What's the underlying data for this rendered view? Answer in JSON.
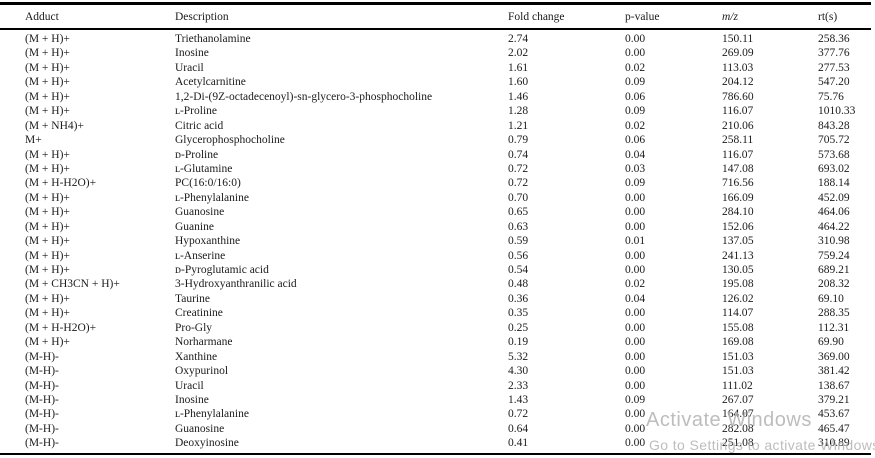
{
  "colors": {
    "background": "#ffffff",
    "text": "#1b1b1b",
    "rule": "#000000",
    "watermark": "#b2b2b2"
  },
  "table": {
    "columns": [
      "Adduct",
      "Description",
      "Fold change",
      "p-value",
      "m/z",
      "rt(s)"
    ],
    "rows": [
      {
        "adduct": "(M + H)+",
        "description": "Triethanolamine",
        "fold_change": "2.74",
        "p_value": "0.00",
        "mz": "150.11",
        "rt": "258.36"
      },
      {
        "adduct": "(M + H)+",
        "description": "Inosine",
        "fold_change": "2.02",
        "p_value": "0.00",
        "mz": "269.09",
        "rt": "377.76"
      },
      {
        "adduct": "(M + H)+",
        "description": "Uracil",
        "fold_change": "1.61",
        "p_value": "0.02",
        "mz": "113.03",
        "rt": "277.53"
      },
      {
        "adduct": "(M + H)+",
        "description": "Acetylcarnitine",
        "fold_change": "1.60",
        "p_value": "0.09",
        "mz": "204.12",
        "rt": "547.20"
      },
      {
        "adduct": "(M + H)+",
        "description": "1,2-Di-(9Z-octadecenoyl)-sn-glycero-3-phosphocholine",
        "fold_change": "1.46",
        "p_value": "0.06",
        "mz": "786.60",
        "rt": "75.76"
      },
      {
        "adduct": "(M + H)+",
        "description": "ʟ-Proline",
        "fold_change": "1.28",
        "p_value": "0.09",
        "mz": "116.07",
        "rt": "1010.33"
      },
      {
        "adduct": "(M + NH4)+",
        "description": "Citric acid",
        "fold_change": "1.21",
        "p_value": "0.02",
        "mz": "210.06",
        "rt": "843.28"
      },
      {
        "adduct": "M+",
        "description": "Glycerophosphocholine",
        "fold_change": "0.79",
        "p_value": "0.06",
        "mz": "258.11",
        "rt": "705.72"
      },
      {
        "adduct": "(M + H)+",
        "description": "ᴅ-Proline",
        "fold_change": "0.74",
        "p_value": "0.04",
        "mz": "116.07",
        "rt": "573.68"
      },
      {
        "adduct": "(M + H)+",
        "description": "ʟ-Glutamine",
        "fold_change": "0.72",
        "p_value": "0.03",
        "mz": "147.08",
        "rt": "693.02"
      },
      {
        "adduct": "(M + H-H2O)+",
        "description": "PC(16:0/16:0)",
        "fold_change": "0.72",
        "p_value": "0.09",
        "mz": "716.56",
        "rt": "188.14"
      },
      {
        "adduct": "(M + H)+",
        "description": "ʟ-Phenylalanine",
        "fold_change": "0.70",
        "p_value": "0.00",
        "mz": "166.09",
        "rt": "452.09"
      },
      {
        "adduct": "(M + H)+",
        "description": "Guanosine",
        "fold_change": "0.65",
        "p_value": "0.00",
        "mz": "284.10",
        "rt": "464.06"
      },
      {
        "adduct": "(M + H)+",
        "description": "Guanine",
        "fold_change": "0.63",
        "p_value": "0.00",
        "mz": "152.06",
        "rt": "464.22"
      },
      {
        "adduct": "(M + H)+",
        "description": "Hypoxanthine",
        "fold_change": "0.59",
        "p_value": "0.01",
        "mz": "137.05",
        "rt": "310.98"
      },
      {
        "adduct": "(M + H)+",
        "description": "ʟ-Anserine",
        "fold_change": "0.56",
        "p_value": "0.00",
        "mz": "241.13",
        "rt": "759.24"
      },
      {
        "adduct": "(M + H)+",
        "description": "ᴅ-Pyroglutamic acid",
        "fold_change": "0.54",
        "p_value": "0.00",
        "mz": "130.05",
        "rt": "689.21"
      },
      {
        "adduct": "(M + CH3CN + H)+",
        "description": "3-Hydroxyanthranilic acid",
        "fold_change": "0.48",
        "p_value": "0.02",
        "mz": "195.08",
        "rt": "208.32"
      },
      {
        "adduct": "(M + H)+",
        "description": "Taurine",
        "fold_change": "0.36",
        "p_value": "0.04",
        "mz": "126.02",
        "rt": "69.10"
      },
      {
        "adduct": "(M + H)+",
        "description": "Creatinine",
        "fold_change": "0.35",
        "p_value": "0.00",
        "mz": "114.07",
        "rt": "288.35"
      },
      {
        "adduct": "(M + H-H2O)+",
        "description": "Pro-Gly",
        "fold_change": "0.25",
        "p_value": "0.00",
        "mz": "155.08",
        "rt": "112.31"
      },
      {
        "adduct": "(M + H)+",
        "description": "Norharmane",
        "fold_change": "0.19",
        "p_value": "0.00",
        "mz": "169.08",
        "rt": "69.90"
      },
      {
        "adduct": "(M-H)-",
        "description": "Xanthine",
        "fold_change": "5.32",
        "p_value": "0.00",
        "mz": "151.03",
        "rt": "369.00"
      },
      {
        "adduct": "(M-H)-",
        "description": "Oxypurinol",
        "fold_change": "4.30",
        "p_value": "0.00",
        "mz": "151.03",
        "rt": "381.42"
      },
      {
        "adduct": "(M-H)-",
        "description": "Uracil",
        "fold_change": "2.33",
        "p_value": "0.00",
        "mz": "111.02",
        "rt": "138.67"
      },
      {
        "adduct": "(M-H)-",
        "description": "Inosine",
        "fold_change": "1.43",
        "p_value": "0.09",
        "mz": "267.07",
        "rt": "379.21"
      },
      {
        "adduct": "(M-H)-",
        "description": "ʟ-Phenylalanine",
        "fold_change": "0.72",
        "p_value": "0.00",
        "mz": "164.07",
        "rt": "453.67"
      },
      {
        "adduct": "(M-H)-",
        "description": "Guanosine",
        "fold_change": "0.64",
        "p_value": "0.00",
        "mz": "282.08",
        "rt": "465.47"
      },
      {
        "adduct": "(M-H)-",
        "description": "Deoxyinosine",
        "fold_change": "0.41",
        "p_value": "0.00",
        "mz": "251.08",
        "rt": "310.89"
      }
    ]
  },
  "watermark": {
    "line1": "Activate Windows",
    "line2": "Go to Settings to activate Windows"
  }
}
